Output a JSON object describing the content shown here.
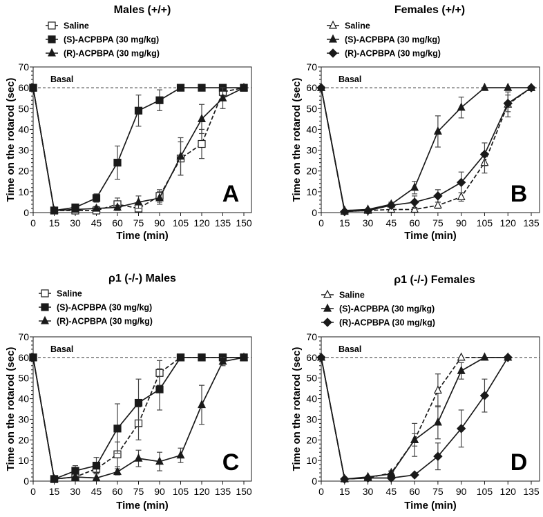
{
  "chart_data": [
    {
      "type": "line",
      "panel": "A",
      "title": "Males (+/+)",
      "xlabel": "Time (min)",
      "ylabel": "Time on the rotarod (sec)",
      "xlim": [
        0,
        150
      ],
      "ylim": [
        0,
        70
      ],
      "xticks": [
        0,
        15,
        30,
        45,
        60,
        75,
        90,
        105,
        120,
        135,
        150
      ],
      "yticks": [
        0,
        10,
        20,
        30,
        40,
        50,
        60,
        70
      ],
      "reference_line": {
        "y": 60,
        "label": "Basal"
      },
      "legend": "top-left, above plot",
      "x": [
        0,
        15,
        30,
        45,
        60,
        75,
        90,
        105,
        120,
        135,
        150
      ],
      "series": [
        {
          "name": "Saline",
          "marker": "open-square",
          "line": "dashed",
          "values": [
            60,
            1,
            1,
            1,
            4,
            2,
            8,
            26,
            33,
            58,
            60
          ],
          "errors": [
            0,
            0.5,
            0.5,
            0.5,
            3,
            1,
            3,
            8,
            7,
            2,
            0
          ]
        },
        {
          "name": "(S)-ACPBPA (30 mg/kg)",
          "marker": "filled-square",
          "line": "solid",
          "values": [
            60,
            1,
            2.5,
            7,
            24,
            49,
            54,
            60,
            60,
            60,
            60
          ],
          "errors": [
            0,
            0.5,
            1,
            2,
            8,
            7.5,
            5,
            0,
            0,
            0,
            0
          ]
        },
        {
          "name": "(R)-ACPBPA (30 mg/kg)",
          "marker": "filled-triangle",
          "line": "solid",
          "values": [
            60,
            1,
            1.5,
            2,
            2.5,
            5,
            7,
            27,
            45,
            55,
            60
          ],
          "errors": [
            0,
            0.5,
            0.5,
            1,
            1,
            3,
            3,
            9,
            7,
            5,
            0
          ]
        }
      ]
    },
    {
      "type": "line",
      "panel": "B",
      "title": "Females (+/+)",
      "xlabel": "Time (min)",
      "ylabel": "Time on the rotarod (sec)",
      "xlim": [
        0,
        135
      ],
      "ylim": [
        0,
        70
      ],
      "xticks": [
        0,
        15,
        30,
        45,
        60,
        75,
        90,
        105,
        120,
        135
      ],
      "yticks": [
        0,
        10,
        20,
        30,
        40,
        50,
        60,
        70
      ],
      "reference_line": {
        "y": 60,
        "label": "Basal"
      },
      "legend": "top-left, above plot",
      "x": [
        0,
        15,
        30,
        45,
        60,
        75,
        90,
        105,
        120,
        135
      ],
      "series": [
        {
          "name": "Saline",
          "marker": "open-triangle",
          "line": "dashed",
          "values": [
            60,
            0.5,
            1,
            1.5,
            1.5,
            3.5,
            7.5,
            24,
            52,
            60
          ],
          "errors": [
            0,
            0.5,
            0.5,
            0.5,
            1,
            1.5,
            2,
            5,
            6,
            0
          ]
        },
        {
          "name": "(S)-ACPBPA (30 mg/kg)",
          "marker": "filled-triangle",
          "line": "solid",
          "values": [
            60,
            1,
            1.5,
            4,
            12,
            39,
            50.5,
            60,
            60,
            60
          ],
          "errors": [
            0,
            0.5,
            0.5,
            1,
            3,
            7.5,
            5,
            0,
            0,
            0
          ]
        },
        {
          "name": "(R)-ACPBPA (30 mg/kg)",
          "marker": "filled-diamond",
          "line": "solid",
          "values": [
            60,
            0.5,
            1,
            3.5,
            5,
            8,
            14.5,
            28,
            52.5,
            60
          ],
          "errors": [
            0,
            0.5,
            0.5,
            1,
            3,
            3,
            5,
            5.5,
            4,
            0
          ]
        }
      ]
    },
    {
      "type": "line",
      "panel": "C",
      "title": "ρ1 (-/-) Males",
      "xlabel": "Time (min)",
      "ylabel": "Time on the rotarod (sec)",
      "xlim": [
        0,
        150
      ],
      "ylim": [
        0,
        70
      ],
      "xticks": [
        0,
        15,
        30,
        45,
        60,
        75,
        90,
        105,
        120,
        135,
        150
      ],
      "yticks": [
        0,
        10,
        20,
        30,
        40,
        50,
        60,
        70
      ],
      "reference_line": {
        "y": 60,
        "label": "Basal"
      },
      "legend": "top-left, above plot",
      "x": [
        0,
        15,
        30,
        45,
        60,
        75,
        90,
        105,
        120,
        135,
        150
      ],
      "series": [
        {
          "name": "Saline",
          "marker": "open-square",
          "line": "dashed",
          "values": [
            60,
            1,
            2,
            6,
            13,
            28,
            52.5,
            60,
            60,
            60,
            60
          ],
          "errors": [
            0,
            0.5,
            1,
            2,
            6,
            8,
            6,
            0,
            0,
            0,
            0
          ]
        },
        {
          "name": "(S)-ACPBPA (30 mg/kg)",
          "marker": "filled-square",
          "line": "solid",
          "values": [
            60,
            1,
            5,
            7.5,
            25.5,
            38,
            44.5,
            60,
            60,
            60,
            60
          ],
          "errors": [
            0,
            0.5,
            2.5,
            4,
            12,
            11.5,
            10,
            0,
            0,
            0,
            0
          ]
        },
        {
          "name": "(R)-ACPBPA (30 mg/kg)",
          "marker": "filled-triangle",
          "line": "solid",
          "values": [
            60,
            1,
            2,
            1.5,
            4.5,
            11,
            9.5,
            12.5,
            37,
            58,
            60
          ],
          "errors": [
            0,
            0.5,
            0.5,
            0.5,
            1.5,
            4,
            4.5,
            3.5,
            9.5,
            2,
            0
          ]
        }
      ]
    },
    {
      "type": "line",
      "panel": "D",
      "title": "ρ1 (-/-) Females",
      "xlabel": "Time (min)",
      "ylabel": "Time on the rotarod (sec)",
      "xlim": [
        0,
        135
      ],
      "ylim": [
        0,
        70
      ],
      "xticks": [
        0,
        15,
        30,
        45,
        60,
        75,
        90,
        105,
        120,
        135
      ],
      "yticks": [
        0,
        10,
        20,
        30,
        40,
        50,
        60,
        70
      ],
      "reference_line": {
        "y": 60,
        "label": "Basal"
      },
      "legend": "top-left, above plot",
      "x": [
        0,
        15,
        30,
        45,
        60,
        75,
        90,
        105,
        120
      ],
      "series": [
        {
          "name": "Saline",
          "marker": "open-triangle",
          "line": "dashed",
          "values": [
            60,
            1,
            1.5,
            4,
            20,
            44,
            60,
            60,
            60
          ],
          "errors": [
            0,
            0.5,
            0.5,
            1,
            8,
            8,
            0,
            0,
            0
          ]
        },
        {
          "name": "(S)-ACPBPA (30 mg/kg)",
          "marker": "filled-triangle",
          "line": "solid",
          "values": [
            60,
            1,
            2,
            3.5,
            20,
            28.5,
            53.5,
            60,
            60
          ],
          "errors": [
            0,
            0.5,
            0.5,
            1,
            3,
            8,
            4,
            0,
            0
          ]
        },
        {
          "name": "(R)-ACPBPA (30 mg/kg)",
          "marker": "filled-diamond",
          "line": "solid",
          "values": [
            60,
            1,
            1.5,
            1.5,
            3,
            12,
            25.5,
            41.5,
            60
          ],
          "errors": [
            0,
            0.5,
            0.5,
            0.5,
            0.5,
            6.5,
            9,
            8,
            0
          ]
        }
      ]
    }
  ]
}
